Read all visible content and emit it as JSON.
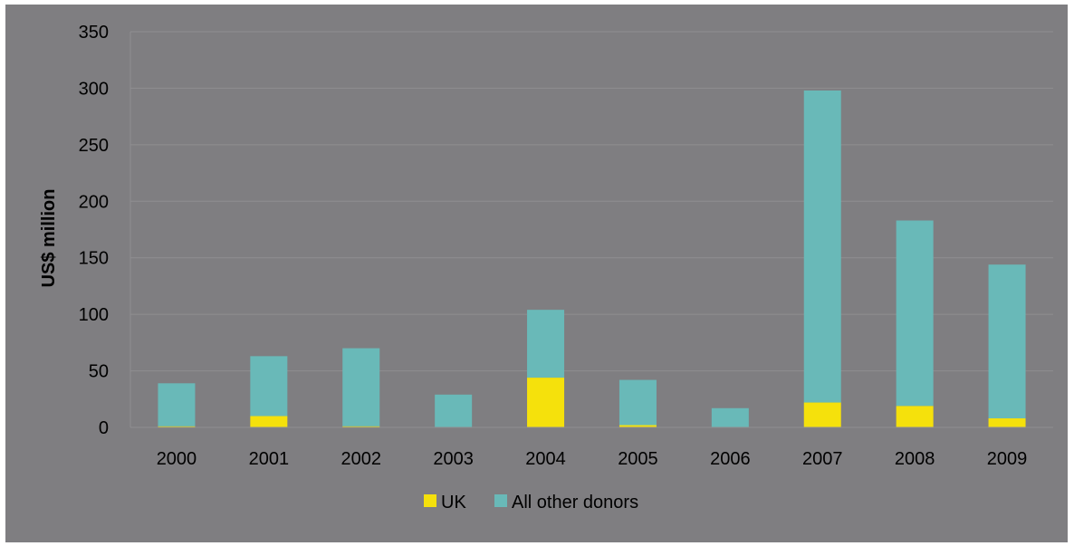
{
  "chart_data": {
    "type": "bar",
    "stacked": true,
    "categories": [
      "2000",
      "2001",
      "2002",
      "2003",
      "2004",
      "2005",
      "2006",
      "2007",
      "2008",
      "2009"
    ],
    "series": [
      {
        "name": "UK",
        "color": "#f5e10c",
        "values": [
          1,
          10,
          1,
          0,
          44,
          2,
          0,
          22,
          19,
          8
        ]
      },
      {
        "name": "All other donors",
        "color": "#69b9b8",
        "values": [
          38,
          53,
          69,
          29,
          60,
          40,
          17,
          276,
          164,
          136
        ]
      }
    ],
    "ylabel": "US$ million",
    "xlabel": "",
    "ylim": [
      0,
      350
    ],
    "yticks": [
      0,
      50,
      100,
      150,
      200,
      250,
      300,
      350
    ],
    "grid": true,
    "legend_position": "bottom",
    "background_color": "#7f7e81",
    "gridline_color": "#8f8e91"
  }
}
